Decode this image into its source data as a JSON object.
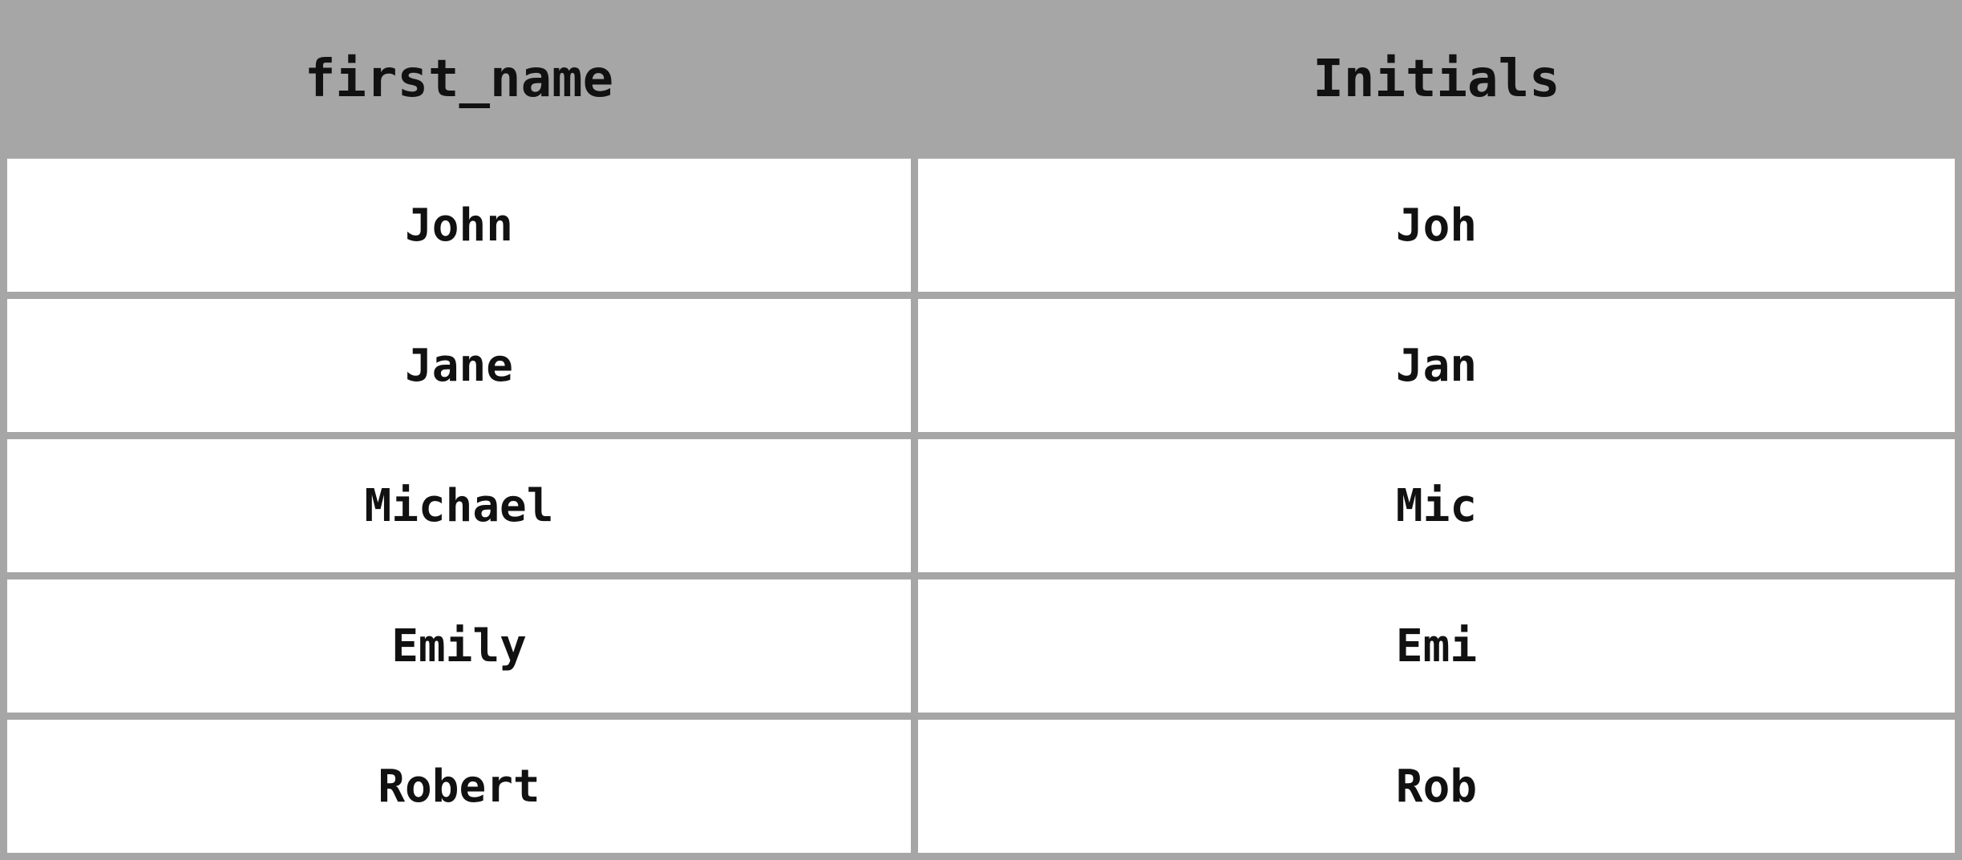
{
  "table": {
    "headers": [
      "first_name",
      "Initials"
    ],
    "rows": [
      [
        "John",
        "Joh"
      ],
      [
        "Jane",
        "Jan"
      ],
      [
        "Michael",
        "Mic"
      ],
      [
        "Emily",
        "Emi"
      ],
      [
        "Robert",
        "Rob"
      ]
    ],
    "header_bg": "#a6a6a6",
    "border_color": "#a6a6a6"
  }
}
